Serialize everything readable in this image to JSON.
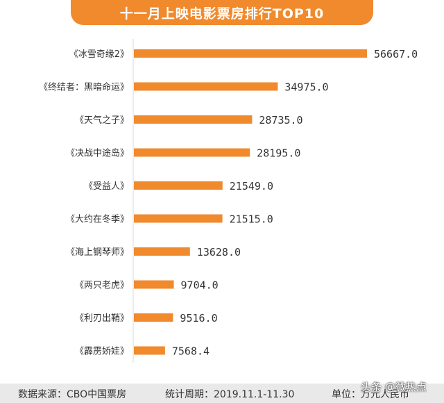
{
  "chart_data": {
    "type": "bar",
    "orientation": "horizontal",
    "title": "十一月上映电影票房排行TOP10",
    "categories": [
      "《冰雪奇缘2》",
      "《终结者：黑暗命运》",
      "《天气之子》",
      "《决战中途岛》",
      "《受益人》",
      "《大约在冬季》",
      "《海上钢琴师》",
      "《两只老虎》",
      "《利刃出鞘》",
      "《霹雳娇娃》"
    ],
    "values": [
      56667.0,
      34975.0,
      28735.0,
      28195.0,
      21549.0,
      21515.0,
      13628.0,
      9704.0,
      9516.0,
      7568.4
    ],
    "value_labels": [
      "56667.0",
      "34975.0",
      "28735.0",
      "28195.0",
      "21549.0",
      "21515.0",
      "13628.0",
      "9704.0",
      "9516.0",
      "7568.4"
    ],
    "xlabel": "",
    "ylabel": "",
    "xlim": [
      0,
      56667.0
    ],
    "grid": false,
    "bar_color": "#f08a2c"
  },
  "footer": {
    "source": "数据来源：CBO中国票房",
    "period": "统计周期：2019.11.1-11.30",
    "unit": "单位：万元人民币"
  },
  "watermark": "头条 @微热点",
  "colors": {
    "accent": "#f08a2c",
    "footer_bg": "#e9e9e9"
  }
}
